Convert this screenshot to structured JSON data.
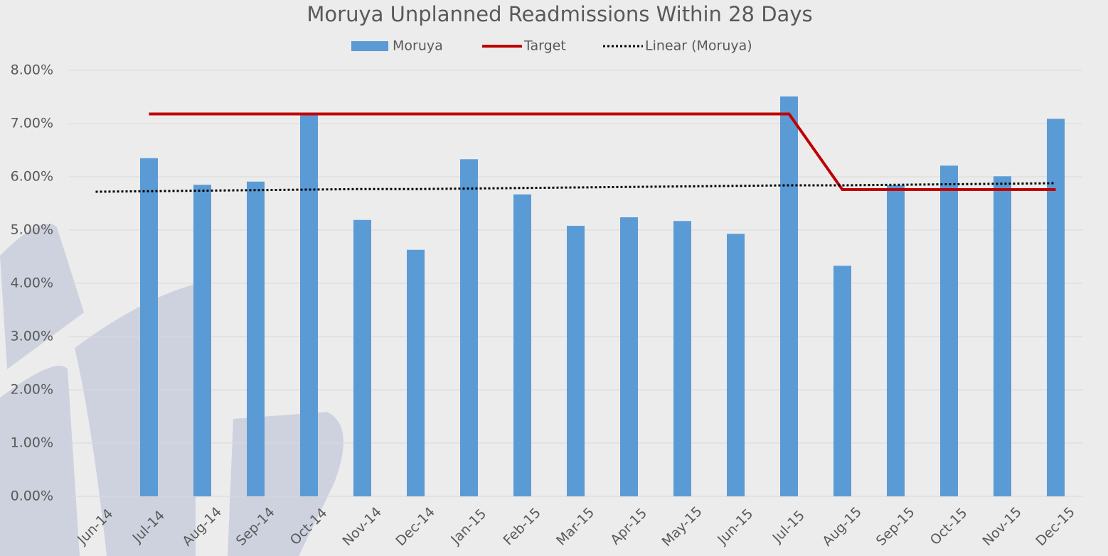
{
  "chart_data": {
    "type": "bar",
    "title": "Moruya Unplanned Readmissions Within 28 Days",
    "categories": [
      "Jun-14",
      "Jul-14",
      "Aug-14",
      "Sep-14",
      "Oct-14",
      "Nov-14",
      "Dec-14",
      "Jan-15",
      "Feb-15",
      "Mar-15",
      "Apr-15",
      "May-15",
      "Jun-15",
      "Jul-15",
      "Aug-15",
      "Sep-15",
      "Oct-15",
      "Nov-15",
      "Dec-15"
    ],
    "series": [
      {
        "name": "Moruya",
        "type": "bar",
        "color": "#5b9bd5",
        "values": [
          null,
          6.35,
          5.85,
          5.91,
          7.19,
          5.19,
          4.63,
          6.33,
          5.67,
          5.08,
          5.24,
          5.17,
          4.93,
          7.51,
          4.33,
          5.84,
          6.21,
          6.01,
          7.09
        ]
      },
      {
        "name": "Target",
        "type": "line",
        "color": "#c00000",
        "values": [
          null,
          7.18,
          7.18,
          7.18,
          7.18,
          7.18,
          7.18,
          7.18,
          7.18,
          7.18,
          7.18,
          7.18,
          7.18,
          7.18,
          5.76,
          5.76,
          5.76,
          5.76,
          5.76
        ]
      },
      {
        "name": "Linear (Moruya)",
        "type": "dotted",
        "color": "#000000",
        "values": [
          5.72,
          5.73,
          5.74,
          5.75,
          5.76,
          5.77,
          5.77,
          5.78,
          5.79,
          5.8,
          5.81,
          5.82,
          5.83,
          5.84,
          5.84,
          5.85,
          5.86,
          5.87,
          5.88
        ]
      }
    ],
    "ylim": [
      0,
      8
    ],
    "yticks": [
      {
        "value": 0,
        "label": "0.00%"
      },
      {
        "value": 1,
        "label": "1.00%"
      },
      {
        "value": 2,
        "label": "2.00%"
      },
      {
        "value": 3,
        "label": "3.00%"
      },
      {
        "value": 4,
        "label": "4.00%"
      },
      {
        "value": 5,
        "label": "5.00%"
      },
      {
        "value": 6,
        "label": "6.00%"
      },
      {
        "value": 7,
        "label": "7.00%"
      },
      {
        "value": 8,
        "label": "8.00%"
      }
    ],
    "grid": true
  }
}
